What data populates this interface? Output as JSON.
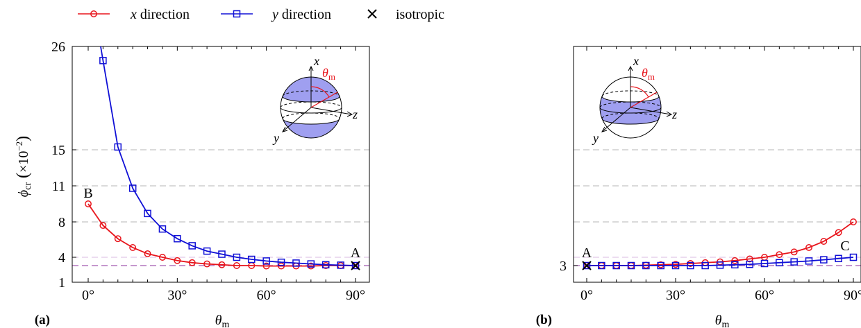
{
  "legend": {
    "x_label_var": "x",
    "x_label_rest": " direction",
    "y_label_var": "y",
    "y_label_rest": " direction",
    "iso_label": "isotropic"
  },
  "colors": {
    "x_series": "#e8141b",
    "y_series": "#1010d6",
    "grid": "#b4b4b4",
    "iso_line": "#a259b0",
    "sphere_fill": "#9f9ff0"
  },
  "chart_data": [
    {
      "type": "line",
      "panel_label": "(a)",
      "xlabel": "θm",
      "ylabel": "φcr (×10−2)",
      "x_ticks": [
        "0°",
        "30°",
        "60°",
        "90°"
      ],
      "y_ticks": [
        1,
        4,
        8,
        11,
        15,
        26
      ],
      "xlim": [
        -5,
        95
      ],
      "ylim": [
        1,
        26
      ],
      "grid_y": [
        4,
        8,
        11,
        15
      ],
      "isotropic_line_y": 3,
      "annotations": [
        {
          "text": "B",
          "x": 0,
          "y": 9.5
        },
        {
          "text": "A",
          "x": 90,
          "y": 3
        }
      ],
      "inset_label": "θm",
      "x": [
        0,
        5,
        10,
        15,
        20,
        25,
        30,
        35,
        40,
        45,
        50,
        55,
        60,
        65,
        70,
        75,
        80,
        85,
        90
      ],
      "series": [
        {
          "name": "x direction",
          "values": [
            9.5,
            7.6,
            6.1,
            5.1,
            4.4,
            4.0,
            3.6,
            3.35,
            3.2,
            3.1,
            3.0,
            3.0,
            2.95,
            2.95,
            2.95,
            2.95,
            3.0,
            3.0,
            3.0
          ]
        },
        {
          "name": "y direction",
          "values": [
            null,
            24.5,
            15.3,
            10.8,
            8.7,
            7.2,
            6.1,
            5.3,
            4.7,
            4.35,
            4.0,
            3.75,
            3.55,
            3.4,
            3.3,
            3.2,
            3.1,
            3.05,
            3.0
          ]
        }
      ],
      "isotropic_point": {
        "x": 90,
        "y": 3
      }
    },
    {
      "type": "line",
      "panel_label": "(b)",
      "xlabel": "θm",
      "x_ticks": [
        "0°",
        "30°",
        "60°",
        "90°"
      ],
      "y_ticks": [
        3
      ],
      "xlim": [
        -5,
        95
      ],
      "ylim": [
        1,
        26
      ],
      "grid_y": [
        4,
        8,
        11,
        15
      ],
      "isotropic_line_y": 3,
      "annotations": [
        {
          "text": "A",
          "x": 0,
          "y": 3
        },
        {
          "text": "C",
          "x": 90,
          "y": 4
        }
      ],
      "inset_label": "θm",
      "x": [
        0,
        5,
        10,
        15,
        20,
        25,
        30,
        35,
        40,
        45,
        50,
        55,
        60,
        65,
        70,
        75,
        80,
        85,
        90
      ],
      "series": [
        {
          "name": "x direction",
          "values": [
            3.0,
            3.0,
            3.0,
            3.0,
            3.05,
            3.1,
            3.15,
            3.25,
            3.35,
            3.45,
            3.6,
            3.8,
            4.0,
            4.3,
            4.6,
            5.1,
            5.8,
            6.8,
            8.0
          ]
        },
        {
          "name": "y direction",
          "values": [
            3.0,
            3.0,
            3.0,
            3.0,
            3.0,
            3.0,
            3.0,
            3.0,
            3.0,
            3.05,
            3.1,
            3.15,
            3.25,
            3.35,
            3.45,
            3.55,
            3.7,
            3.85,
            4.0
          ]
        }
      ],
      "isotropic_point": {
        "x": 0,
        "y": 3
      }
    }
  ]
}
